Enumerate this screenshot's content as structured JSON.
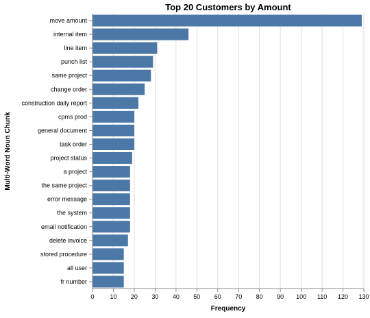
{
  "chart_data": {
    "type": "bar",
    "orientation": "horizontal",
    "title": "Top 20 Customers by Amount",
    "xlabel": "Frequency",
    "ylabel": "Multi-Word Noun Chunk",
    "xlim": [
      0,
      130
    ],
    "x_ticks": [
      0,
      10,
      20,
      30,
      40,
      50,
      60,
      70,
      80,
      90,
      100,
      110,
      120,
      130
    ],
    "grid": true,
    "bar_color": "#4c78a8",
    "categories": [
      "move amount",
      "internal item",
      "line item",
      "punch list",
      "same project",
      "change order",
      "construction daily report",
      "cpms prod",
      "general document",
      "task order",
      "project status",
      "a project",
      "the same project",
      "error message",
      "the system",
      "email notification",
      "delete invoice",
      "stored procedure",
      "all user",
      "fr number"
    ],
    "values": [
      129,
      46,
      31,
      29,
      28,
      25,
      22,
      20,
      20,
      20,
      19,
      18,
      18,
      18,
      18,
      18,
      17,
      15,
      15,
      15
    ]
  }
}
